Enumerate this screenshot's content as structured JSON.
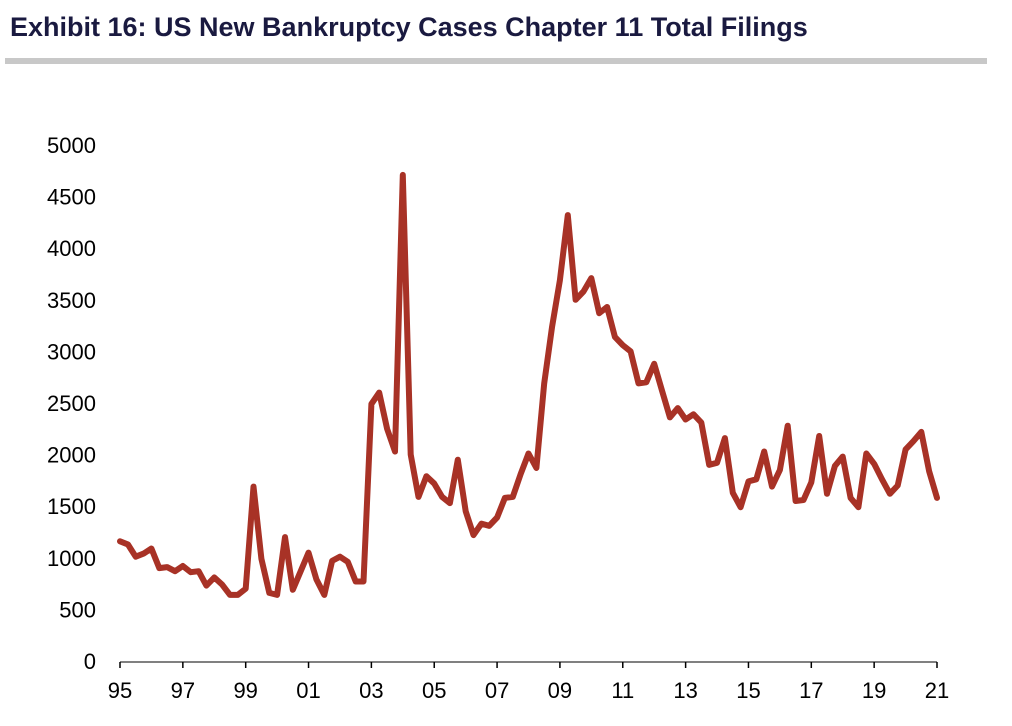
{
  "chart_data": {
    "type": "line",
    "title": "Exhibit 16: US New Bankruptcy Cases Chapter 11 Total Filings",
    "xlabel": "",
    "ylabel": "",
    "ylim": [
      0,
      5000
    ],
    "yticks": [
      0,
      500,
      1000,
      1500,
      2000,
      2500,
      3000,
      3500,
      4000,
      4500,
      5000
    ],
    "xlim": [
      1995.0,
      2021.0
    ],
    "xticks": [
      {
        "value": 1995,
        "label": "95"
      },
      {
        "value": 1997,
        "label": "97"
      },
      {
        "value": 1999,
        "label": "99"
      },
      {
        "value": 2001,
        "label": "01"
      },
      {
        "value": 2003,
        "label": "03"
      },
      {
        "value": 2005,
        "label": "05"
      },
      {
        "value": 2007,
        "label": "07"
      },
      {
        "value": 2009,
        "label": "09"
      },
      {
        "value": 2011,
        "label": "11"
      },
      {
        "value": 2013,
        "label": "13"
      },
      {
        "value": 2015,
        "label": "15"
      },
      {
        "value": 2017,
        "label": "17"
      },
      {
        "value": 2019,
        "label": "19"
      },
      {
        "value": 2021,
        "label": "21"
      }
    ],
    "grid": false,
    "legend": "none",
    "line_color": "#a83226",
    "series": [
      {
        "x": [
          1995.0,
          1995.25,
          1995.5,
          1995.75,
          1996.0,
          1996.25,
          1996.5,
          1996.75,
          1997.0,
          1997.25,
          1997.5,
          1997.75,
          1998.0,
          1998.25,
          1998.5,
          1998.75,
          1999.0,
          1999.25,
          1999.5,
          1999.75,
          2000.0,
          2000.25,
          2000.5,
          2000.75,
          2001.0,
          2001.25,
          2001.5,
          2001.75,
          2002.0,
          2002.25,
          2002.5,
          2002.75,
          2003.0,
          2003.25,
          2003.5,
          2003.75,
          2004.0,
          2004.25,
          2004.5,
          2004.75,
          2005.0,
          2005.25,
          2005.5,
          2005.75,
          2006.0,
          2006.25,
          2006.5,
          2006.75,
          2007.0,
          2007.25,
          2007.5,
          2007.75,
          2008.0,
          2008.25,
          2008.5,
          2008.75,
          2009.0,
          2009.25,
          2009.5,
          2009.75,
          2010.0,
          2010.25,
          2010.5,
          2010.75,
          2011.0,
          2011.25,
          2011.5,
          2011.75,
          2012.0,
          2012.25,
          2012.5,
          2012.75,
          2013.0,
          2013.25,
          2013.5,
          2013.75,
          2014.0,
          2014.25,
          2014.5,
          2014.75,
          2015.0,
          2015.25,
          2015.5,
          2015.75,
          2016.0,
          2016.25,
          2016.5,
          2016.75,
          2017.0,
          2017.25,
          2017.5,
          2017.75,
          2018.0,
          2018.25,
          2018.5,
          2018.75,
          2019.0,
          2019.25,
          2019.5,
          2019.75,
          2020.0,
          2020.25,
          2020.5,
          2020.75,
          2021.0
        ],
        "values": [
          1170,
          1140,
          1020,
          1050,
          1100,
          910,
          920,
          880,
          930,
          870,
          880,
          740,
          820,
          750,
          650,
          650,
          710,
          1700,
          1000,
          670,
          650,
          1210,
          700,
          880,
          1060,
          800,
          650,
          980,
          1020,
          970,
          780,
          780,
          2500,
          2610,
          2260,
          2040,
          4720,
          2010,
          1600,
          1800,
          1730,
          1600,
          1540,
          1960,
          1460,
          1230,
          1340,
          1320,
          1400,
          1590,
          1600,
          1820,
          2020,
          1880,
          2700,
          3250,
          3700,
          4330,
          3510,
          3590,
          3720,
          3380,
          3440,
          3150,
          3070,
          3010,
          2700,
          2710,
          2890,
          2630,
          2370,
          2460,
          2350,
          2400,
          2320,
          1910,
          1930,
          2170,
          1640,
          1500,
          1750,
          1770,
          2040,
          1700,
          1860,
          2290,
          1560,
          1570,
          1740,
          2190,
          1630,
          1900,
          1990,
          1590,
          1500,
          2020,
          1920,
          1770,
          1630,
          1710,
          2060,
          2140,
          2230,
          1850,
          1590
        ]
      }
    ]
  }
}
